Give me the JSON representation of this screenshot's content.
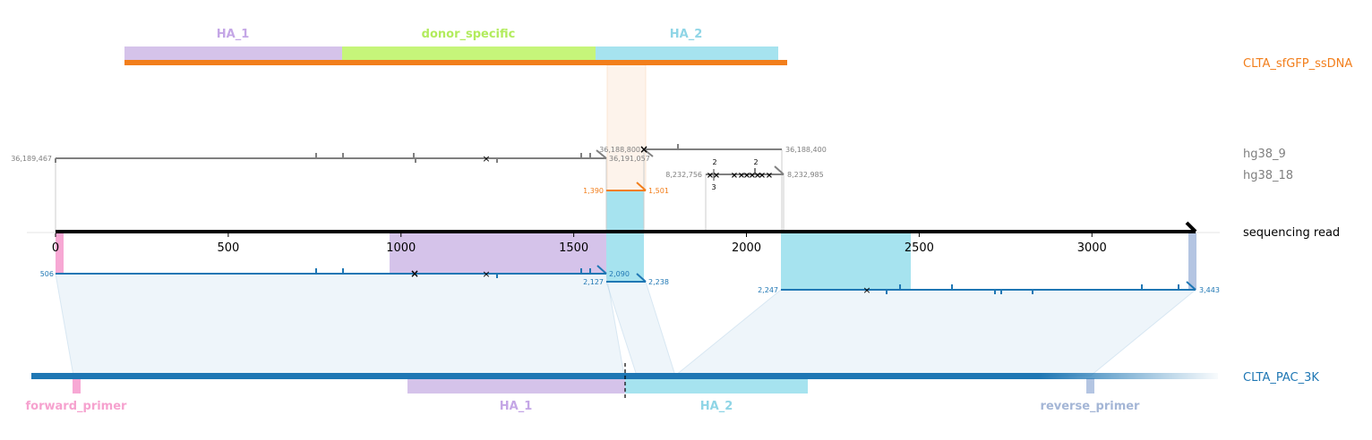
{
  "colors": {
    "ha1": "#d5c3ea",
    "ha1_text": "#c4a6e6",
    "donor": "#c6f57a",
    "donor_text": "#b2ec5d",
    "ha2": "#a6e3ef",
    "ha2_text": "#8fd5e6",
    "ssdna": "#f27e1b",
    "blue": "#1f77b4",
    "gray": "#808080",
    "fwd_primer": "#f7a8d4",
    "fwd_primer_text": "#f6a2cf",
    "rev_primer": "#b4c5e2",
    "rev_primer_text": "#a4b6d6",
    "read": "#000000"
  },
  "axis": {
    "ticks": [
      0,
      500,
      1000,
      1500,
      2000,
      2500,
      3000
    ],
    "tick_labels": [
      "0",
      "500",
      "1000",
      "1500",
      "2000",
      "2500",
      "3000"
    ],
    "min": 0,
    "max": 3300
  },
  "track_labels": {
    "ssdna": "CLTA_sfGFP_ssDNA",
    "hg38_9": "hg38_9",
    "hg38_18": "hg38_18",
    "read": "sequencing read",
    "pac": "CLTA_PAC_3K"
  },
  "ssdna_features": [
    {
      "label": "HA_1",
      "color_key": "ha1",
      "text_key": "ha1_text"
    },
    {
      "label": "donor_specific",
      "color_key": "donor",
      "text_key": "donor_text"
    },
    {
      "label": "HA_2",
      "color_key": "ha2",
      "text_key": "ha2_text"
    }
  ],
  "pac_features": [
    {
      "label": "forward_primer",
      "color_key": "fwd_primer",
      "text_key": "fwd_primer_text"
    },
    {
      "label": "HA_1",
      "color_key": "ha1",
      "text_key": "ha1_text"
    },
    {
      "label": "HA_2",
      "color_key": "ha2",
      "text_key": "ha2_text"
    },
    {
      "label": "reverse_primer",
      "color_key": "rev_primer",
      "text_key": "rev_primer_text"
    }
  ],
  "alignments": {
    "hg38_9_a": {
      "left": "36,189,467",
      "right": "36,191,057"
    },
    "hg38_9_b": {
      "left": "36,188,800",
      "right": "36,188,400"
    },
    "hg38_18": {
      "left": "8,232,756",
      "right": "8,232,985",
      "top_counts": [
        "2",
        "2"
      ],
      "bottom_count": "3"
    },
    "ssdna": {
      "left": "1,390",
      "right": "1,501"
    },
    "pac_a": {
      "left": "506",
      "right": "2,090"
    },
    "pac_b": {
      "left": "2,127",
      "right": "2,238"
    },
    "pac_c": {
      "left": "2,247",
      "right": "3,443"
    }
  }
}
